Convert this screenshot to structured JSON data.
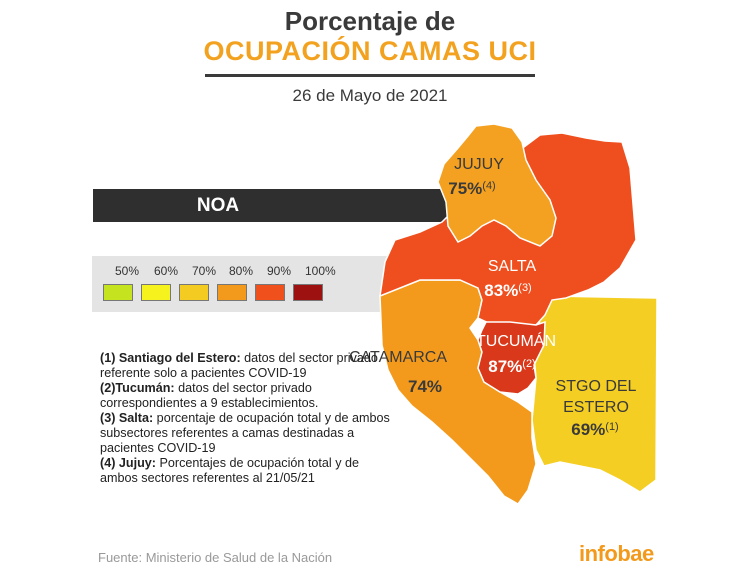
{
  "header": {
    "title_line1": "Porcentaje de",
    "title_line2": "OCUPACIÓN CAMAS UCI",
    "date": "26 de Mayo de 2021"
  },
  "region_bar": {
    "label": "NOA"
  },
  "legend": {
    "items": [
      {
        "label": "50%",
        "color": "#c6e320"
      },
      {
        "label": "60%",
        "color": "#f6f21d"
      },
      {
        "label": "70%",
        "color": "#f4cb21"
      },
      {
        "label": "80%",
        "color": "#f39a1c"
      },
      {
        "label": "90%",
        "color": "#f0501c"
      },
      {
        "label": "100%",
        "color": "#9e1111"
      }
    ]
  },
  "map": {
    "provinces": [
      {
        "id": "jujuy",
        "name": "JUJUY",
        "value": "75%",
        "note": "(4)",
        "color": "#f4a121"
      },
      {
        "id": "salta",
        "name": "SALTA",
        "value": "83%",
        "note": "(3)",
        "color": "#ef4f1e"
      },
      {
        "id": "catamarca",
        "name": "CATAMARCA",
        "value": "74%",
        "note": "",
        "color": "#f39a1c"
      },
      {
        "id": "tucuman",
        "name": "TUCUMÁN",
        "value": "87%",
        "note": "(2)",
        "color": "#d9381a"
      },
      {
        "id": "santiago",
        "name_line1": "STGO DEL",
        "name_line2": "ESTERO",
        "value": "69%",
        "note": "(1)",
        "color": "#f4ce22"
      }
    ]
  },
  "notes": [
    {
      "bold": "(1) Santiago del Estero:",
      "text": " datos del sector privado referente solo a pacientes COVID-19"
    },
    {
      "bold": "(2)Tucumán:",
      "text": " datos del sector privado correspondientes a 9 establecimientos."
    },
    {
      "bold": "(3) Salta:",
      "text": " porcentaje de ocupación total y de ambos subsectores referentes a camas destinadas a pacientes COVID-19"
    },
    {
      "bold": "(4) Jujuy:",
      "text": " Porcentajes de ocupación total y de ambos sectores referentes al 21/05/21"
    }
  ],
  "footer": {
    "source": "Fuente: Ministerio de Salud de la Nación",
    "brand": "infobae"
  }
}
